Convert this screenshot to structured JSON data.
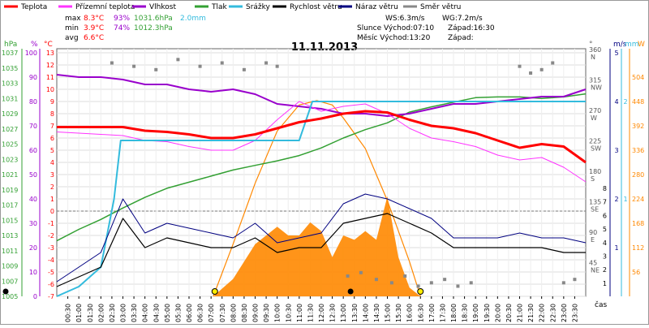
{
  "title": "11.11.2013",
  "legend": [
    {
      "label": "Teplota",
      "color": "#ff0000"
    },
    {
      "label": "Přízemní teplota",
      "color": "#ff33ff"
    },
    {
      "label": "Vlhkost",
      "color": "#9900cc"
    },
    {
      "label": "Tlak",
      "color": "#33a033"
    },
    {
      "label": "Srážky",
      "color": "#33bbdd"
    },
    {
      "label": "Rychlost větru",
      "color": "#000000"
    },
    {
      "label": "Náraz větru",
      "color": "#000080"
    },
    {
      "label": "Směr větru",
      "color": "#888888"
    }
  ],
  "stats": {
    "max": {
      "label": "max",
      "temp": "8.3°C",
      "hum": "93%",
      "press": "1031.6hPa",
      "rain": "2.0mm"
    },
    "min": {
      "label": "min",
      "temp": "3.9°C",
      "hum": "74%",
      "press": "1012.3hPa"
    },
    "avg": {
      "label": "avg",
      "temp": "6.6°C"
    }
  },
  "info": {
    "ws": "WS:6.3m/s",
    "wg": "WG:7.2m/s",
    "sun": "Slunce Východ:07:10",
    "sun_set": "Západ:16:30",
    "moon": "Měsíc Východ:13:20",
    "moon_set": "Západ:"
  },
  "axes": {
    "hpa": {
      "unit": "hPa",
      "ticks": [
        "1037",
        "1035",
        "1033",
        "1031",
        "1029",
        "1027",
        "1025",
        "1023",
        "1021",
        "1019",
        "1017",
        "1015",
        "1013",
        "1011",
        "1009",
        "1007",
        "1005"
      ]
    },
    "pct": {
      "unit": "%",
      "ticks": [
        "100",
        "90",
        "80",
        "70",
        "60",
        "50",
        "40",
        "30",
        "20",
        "10",
        "0"
      ]
    },
    "celsius": {
      "unit": "°C",
      "ticks": [
        "13",
        "12",
        "11",
        "10",
        "9",
        "8",
        "7",
        "6",
        "5",
        "4",
        "3",
        "2",
        "1",
        "0",
        "-1",
        "-2",
        "-3",
        "-4",
        "-5",
        "-6",
        "-7"
      ]
    },
    "dir": {
      "unit": "°",
      "ticks": [
        {
          "deg": "360",
          "c": "N"
        },
        {
          "deg": "315",
          "c": "NW"
        },
        {
          "deg": "270",
          "c": "W"
        },
        {
          "deg": "225",
          "c": "SW"
        },
        {
          "deg": "180",
          "c": "S"
        },
        {
          "deg": "135",
          "c": "SE"
        },
        {
          "deg": "90",
          "c": "E"
        },
        {
          "deg": "45",
          "c": "NE"
        }
      ]
    },
    "ms": {
      "unit": "m/s",
      "ticks": [
        "5",
        "4",
        "3",
        "2",
        "1"
      ]
    },
    "wind_right": {
      "ticks": [
        "8",
        "7",
        "6",
        "5",
        "4",
        "3",
        "2",
        "1"
      ]
    },
    "mm": {
      "unit": "mm",
      "ticks": [
        "2",
        "1"
      ]
    },
    "w": {
      "unit": "W",
      "ticks": [
        "504",
        "448",
        "392",
        "336",
        "280",
        "224",
        "168",
        "112",
        "56"
      ]
    },
    "time": {
      "unit": "čas",
      "ticks": [
        "00:30",
        "01:00",
        "01:30",
        "02:00",
        "02:30",
        "03:00",
        "03:30",
        "04:00",
        "04:30",
        "05:00",
        "05:30",
        "06:00",
        "06:30",
        "07:00",
        "07:30",
        "08:00",
        "08:30",
        "09:00",
        "09:30",
        "10:00",
        "10:30",
        "11:00",
        "11:30",
        "12:00",
        "12:30",
        "13:00",
        "13:30",
        "14:00",
        "14:30",
        "15:00",
        "15:30",
        "16:00",
        "16:30",
        "17:00",
        "17:30",
        "18:00",
        "18:30",
        "19:00",
        "19:30",
        "20:00",
        "20:30",
        "21:00",
        "21:30",
        "22:00",
        "22:30",
        "23:00",
        "23:30"
      ]
    }
  },
  "chart_data": {
    "type": "line",
    "title": "11.11.2013",
    "x_unit": "hour of day",
    "x_range": [
      0,
      24
    ],
    "series": [
      {
        "name": "Teplota",
        "color": "#ff0000",
        "axis": "°C",
        "x": [
          0,
          1,
          2,
          3,
          4,
          5,
          6,
          7,
          8,
          9,
          10,
          11,
          12,
          13,
          14,
          15,
          16,
          17,
          18,
          19,
          20,
          21,
          22,
          23,
          24
        ],
        "y": [
          6.9,
          6.9,
          6.9,
          6.9,
          6.6,
          6.5,
          6.3,
          6.0,
          6.0,
          6.3,
          6.8,
          7.3,
          7.6,
          8.0,
          8.2,
          8.1,
          7.5,
          7.0,
          6.8,
          6.4,
          5.8,
          5.2,
          5.5,
          5.3,
          4.0
        ]
      },
      {
        "name": "Přízemní teplota",
        "color": "#ff33ff",
        "axis": "°C",
        "x": [
          0,
          1,
          2,
          3,
          4,
          5,
          6,
          7,
          8,
          9,
          10,
          11,
          12,
          13,
          14,
          15,
          16,
          17,
          18,
          19,
          20,
          21,
          22,
          23,
          24
        ],
        "y": [
          6.5,
          6.4,
          6.3,
          6.2,
          5.8,
          5.7,
          5.3,
          5.0,
          5.0,
          5.8,
          7.5,
          9.0,
          8.2,
          8.6,
          8.8,
          8.0,
          6.8,
          6.0,
          5.7,
          5.3,
          4.6,
          4.2,
          4.4,
          3.6,
          2.4
        ]
      },
      {
        "name": "Vlhkost",
        "color": "#9900cc",
        "axis": "%",
        "x": [
          0,
          1,
          2,
          3,
          4,
          5,
          6,
          7,
          8,
          9,
          10,
          11,
          12,
          13,
          14,
          15,
          16,
          17,
          18,
          19,
          20,
          21,
          22,
          23,
          24
        ],
        "y": [
          91,
          90,
          90,
          89,
          87,
          87,
          85,
          84,
          85,
          83,
          79,
          78,
          77,
          75,
          75,
          74,
          75,
          77,
          79,
          79,
          80,
          81,
          82,
          82,
          85
        ]
      },
      {
        "name": "Tlak",
        "color": "#33a033",
        "axis": "hPa",
        "x": [
          0,
          1,
          2,
          3,
          4,
          5,
          6,
          7,
          8,
          9,
          10,
          11,
          12,
          13,
          14,
          15,
          16,
          17,
          18,
          19,
          20,
          21,
          22,
          23,
          24
        ],
        "y": [
          1012.3,
          1013.8,
          1015.1,
          1016.6,
          1018.0,
          1019.2,
          1020.0,
          1020.8,
          1021.6,
          1022.2,
          1022.8,
          1023.5,
          1024.5,
          1025.8,
          1026.9,
          1027.8,
          1029.2,
          1029.9,
          1030.5,
          1031.1,
          1031.2,
          1031.2,
          1031.0,
          1031.2,
          1031.6
        ]
      },
      {
        "name": "Srážky",
        "color": "#33bbdd",
        "axis": "mm",
        "x": [
          0,
          1,
          2,
          2.6,
          2.9,
          3.3,
          11.0,
          11.6,
          24
        ],
        "y": [
          0,
          0.1,
          0.3,
          1.0,
          1.6,
          1.6,
          1.6,
          2.0,
          2.0
        ]
      },
      {
        "name": "Rychlost větru",
        "color": "#000000",
        "axis": "m/s",
        "x": [
          0,
          1,
          2,
          3,
          4,
          5,
          6,
          7,
          8,
          9,
          10,
          11,
          12,
          13,
          14,
          15,
          16,
          17,
          18,
          19,
          20,
          21,
          22,
          23,
          24
        ],
        "y": [
          0.2,
          0.4,
          0.6,
          1.6,
          1.0,
          1.2,
          1.1,
          1.0,
          1.0,
          1.2,
          0.9,
          1.0,
          1.0,
          1.5,
          1.6,
          1.7,
          1.5,
          1.3,
          1.0,
          1.0,
          1.0,
          1.0,
          1.0,
          0.9,
          0.9
        ]
      },
      {
        "name": "Náraz větru",
        "color": "#000080",
        "axis": "m/s",
        "x": [
          0,
          1,
          2,
          3,
          4,
          5,
          6,
          7,
          8,
          9,
          10,
          11,
          12,
          13,
          14,
          15,
          16,
          17,
          18,
          19,
          20,
          21,
          22,
          23,
          24
        ],
        "y": [
          0.3,
          0.6,
          0.9,
          2.0,
          1.3,
          1.5,
          1.4,
          1.3,
          1.2,
          1.5,
          1.1,
          1.2,
          1.3,
          1.9,
          2.1,
          2.0,
          1.8,
          1.6,
          1.2,
          1.2,
          1.2,
          1.3,
          1.2,
          1.2,
          1.1
        ]
      },
      {
        "name": "Směr větru",
        "color": "#888888",
        "axis": "°",
        "style": "points",
        "x": [
          2.5,
          3.5,
          4.5,
          5.5,
          6.5,
          7.5,
          8.5,
          9.5,
          10,
          13.2,
          13.8,
          14.5,
          15.2,
          15.8,
          16.4,
          17,
          17.6,
          18.2,
          18.8,
          21,
          21.5,
          22,
          22.5,
          23,
          23.5
        ],
        "y": [
          345,
          340,
          335,
          350,
          340,
          345,
          335,
          345,
          340,
          30,
          35,
          25,
          20,
          30,
          15,
          20,
          25,
          15,
          20,
          340,
          330,
          335,
          345,
          20,
          25
        ]
      },
      {
        "name": "Solar",
        "color": "#ff8800",
        "axis": "W",
        "style": "area",
        "x": [
          7.1,
          8,
          9,
          10,
          10.5,
          11,
          11.5,
          12,
          12.5,
          13,
          13.5,
          14,
          14.5,
          15,
          15.5,
          16,
          16.5
        ],
        "y": [
          0,
          40,
          120,
          160,
          140,
          140,
          170,
          150,
          90,
          140,
          130,
          150,
          130,
          230,
          90,
          20,
          0
        ]
      },
      {
        "name": "Solar theoretical",
        "color": "#ff8800",
        "axis": "W",
        "style": "line",
        "x": [
          7.1,
          8,
          9,
          10,
          11,
          11.8,
          12.5,
          13,
          14,
          15,
          16,
          16.5
        ],
        "y": [
          0,
          120,
          260,
          380,
          440,
          450,
          440,
          410,
          340,
          220,
          80,
          0
        ]
      }
    ]
  }
}
